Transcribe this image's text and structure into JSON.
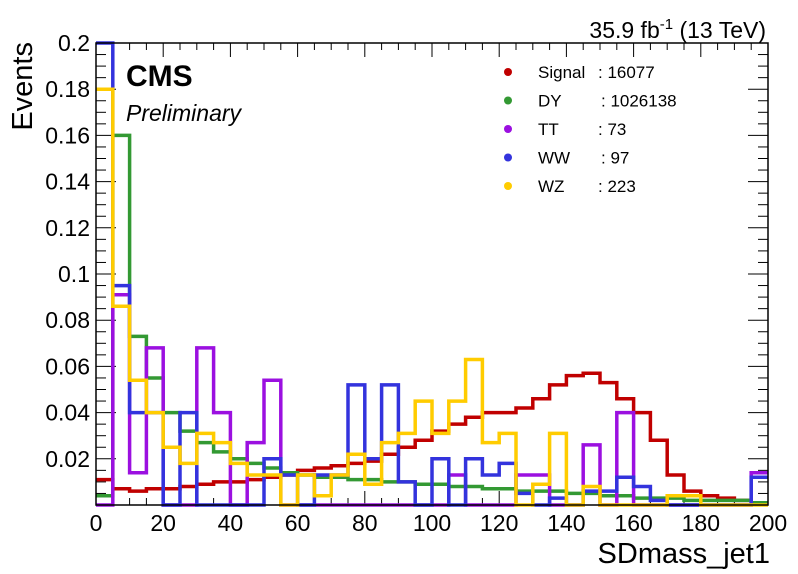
{
  "chart_data": {
    "type": "histogram",
    "title": "",
    "lumi_label": "35.9 fb",
    "lumi_exponent": "-1",
    "lumi_energy": " (13 TeV)",
    "cms_label": "CMS",
    "cms_sublabel": "Preliminary",
    "xlabel": "SDmass_jet1",
    "ylabel": "Events",
    "xlim": [
      0,
      200
    ],
    "ylim": [
      0,
      0.2
    ],
    "bin_width": 5,
    "x_ticks": [
      0,
      20,
      40,
      60,
      80,
      100,
      120,
      140,
      160,
      180,
      200
    ],
    "y_ticks": [
      0.02,
      0.04,
      0.06,
      0.08,
      0.1,
      0.12,
      0.14,
      0.16,
      0.18,
      0.2
    ],
    "grid": false,
    "legend_position": "top-right",
    "legend": [
      {
        "name": "Signal",
        "count": "16077"
      },
      {
        "name": "DY",
        "count": "1026138"
      },
      {
        "name": "TT",
        "count": "73"
      },
      {
        "name": "WW",
        "count": "97"
      },
      {
        "name": "WZ",
        "count": "223"
      }
    ],
    "series": [
      {
        "name": "Signal",
        "color": "#c00000",
        "values": [
          0.011,
          0.007,
          0.006,
          0.007,
          0.007,
          0.008,
          0.009,
          0.01,
          0.01,
          0.011,
          0.012,
          0.013,
          0.015,
          0.016,
          0.017,
          0.018,
          0.019,
          0.022,
          0.025,
          0.028,
          0.032,
          0.035,
          0.038,
          0.04,
          0.04,
          0.042,
          0.046,
          0.052,
          0.056,
          0.057,
          0.053,
          0.046,
          0.04,
          0.028,
          0.013,
          0.006,
          0.004,
          0.003,
          0.002,
          0.001
        ]
      },
      {
        "name": "DY",
        "color": "#339933",
        "values": [
          0.004,
          0.16,
          0.073,
          0.055,
          0.04,
          0.032,
          0.027,
          0.023,
          0.02,
          0.018,
          0.016,
          0.014,
          0.013,
          0.012,
          0.012,
          0.011,
          0.011,
          0.01,
          0.01,
          0.009,
          0.009,
          0.008,
          0.008,
          0.007,
          0.007,
          0.006,
          0.006,
          0.006,
          0.005,
          0.005,
          0.004,
          0.004,
          0.003,
          0.003,
          0.003,
          0.002,
          0.002,
          0.002,
          0.002,
          0.001
        ]
      },
      {
        "name": "TT",
        "color": "#9b10e0",
        "values": [
          0.0,
          0.091,
          0.014,
          0.068,
          0.0,
          0.0,
          0.068,
          0.04,
          0.0,
          0.027,
          0.054,
          0.0,
          0.0,
          0.0,
          0.0,
          0.0,
          0.0,
          0.0,
          0.0,
          0.0,
          0.0,
          0.013,
          0.0,
          0.0,
          0.0,
          0.013,
          0.013,
          0.0,
          0.0,
          0.026,
          0.0,
          0.04,
          0.0,
          0.0,
          0.0,
          0.0,
          0.0,
          0.0,
          0.0,
          0.014
        ]
      },
      {
        "name": "WW",
        "color": "#3333dd",
        "values": [
          0.2,
          0.095,
          0.04,
          0.04,
          0.0,
          0.04,
          0.0,
          0.0,
          0.0,
          0.0,
          0.02,
          0.013,
          0.0,
          0.013,
          0.013,
          0.052,
          0.02,
          0.052,
          0.01,
          0.0,
          0.02,
          0.0,
          0.02,
          0.013,
          0.018,
          0.005,
          0.0,
          0.003,
          0.0,
          0.006,
          0.006,
          0.012,
          0.008,
          0.002,
          0.0,
          0.0,
          0.0,
          0.0,
          0.0,
          0.012
        ]
      },
      {
        "name": "WZ",
        "color": "#ffcc00",
        "values": [
          0.18,
          0.086,
          0.054,
          0.04,
          0.025,
          0.018,
          0.031,
          0.027,
          0.018,
          0.013,
          0.013,
          0.0,
          0.013,
          0.004,
          0.013,
          0.022,
          0.009,
          0.027,
          0.031,
          0.045,
          0.031,
          0.045,
          0.063,
          0.027,
          0.031,
          0.0,
          0.009,
          0.031,
          0.0,
          0.008,
          0.0,
          0.0,
          0.0,
          0.0,
          0.004,
          0.004,
          0.0,
          0.0,
          0.0,
          0.0
        ]
      }
    ]
  }
}
